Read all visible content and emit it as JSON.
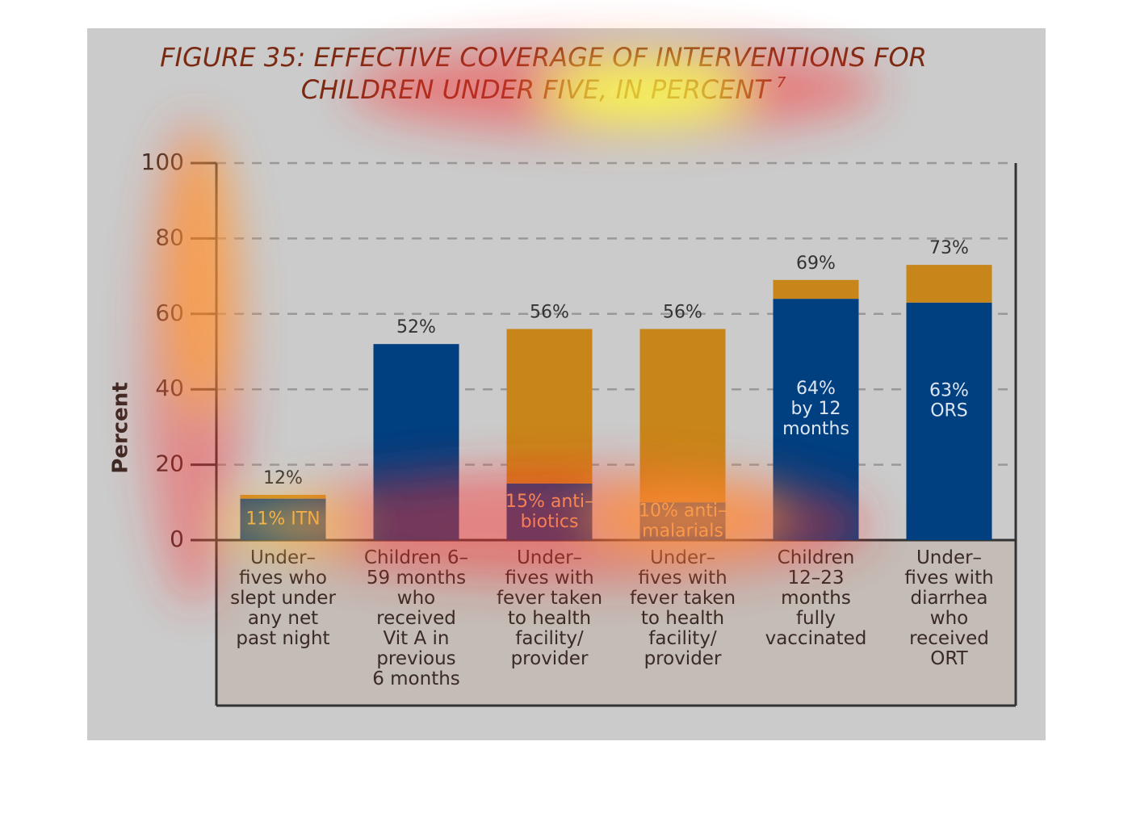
{
  "chart_data": {
    "type": "stacked_bar",
    "title": "FIGURE 35: EFFECTIVE COVERAGE OF INTERVENTIONS FOR\nCHILDREN UNDER FIVE, IN PERCENT",
    "title_note": "7",
    "y_label": "Percent",
    "categories": [
      "Under–\nfives who\nslept under\nany net\npast night",
      "Children 6–\n59 months\nwho\nreceived\nVit A in\nprevious\n6 months",
      "Under–\nfives with\nfever taken\nto health\nfacility/\nprovider",
      "Under–\nfives with\nfever taken\nto health\nfacility/\nprovider",
      "Children\n12–23\nmonths\nfully\nvaccinated",
      "Under–\nfives with\ndiarrhea\nwho\nreceived\nORT"
    ],
    "series": [
      {
        "color": "#003f80",
        "values": [
          11,
          52,
          15,
          10,
          64,
          63
        ],
        "value_labels": [
          "11% ITN",
          null,
          "15% anti–\nbiotics",
          "10% anti–\nmalarials",
          "64%\nby 12\nmonths",
          "63%\nORS"
        ],
        "label_colors": [
          "#e8b050",
          null,
          "#f0c070",
          "#f0d080",
          "#dde6f0",
          "#dde6f0"
        ]
      },
      {
        "color": "#c8861a",
        "values": [
          1,
          0,
          41,
          46,
          5,
          10
        ]
      }
    ],
    "totals": [
      12,
      52,
      56,
      56,
      69,
      73
    ],
    "total_labels": [
      "12%",
      "52%",
      "56%",
      "56%",
      "69%",
      "73%"
    ],
    "ylim": [
      0,
      100
    ],
    "yticks": [
      0,
      20,
      40,
      60,
      80,
      100
    ],
    "grid": true
  }
}
